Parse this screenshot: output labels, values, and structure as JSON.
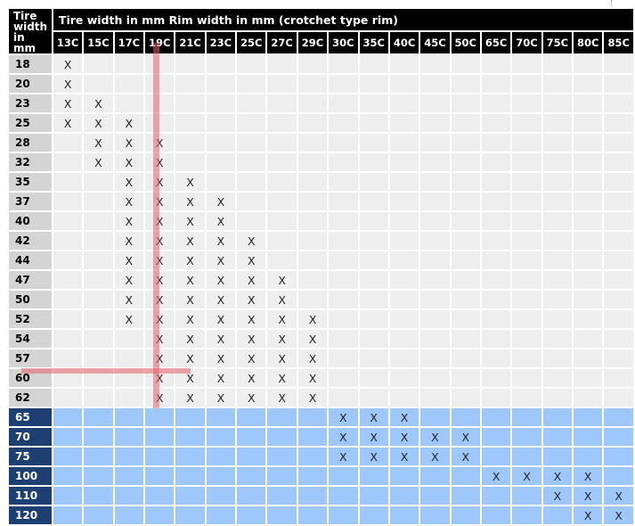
{
  "header": {
    "corner_label": [
      "Tire",
      "width",
      "in",
      "mm"
    ],
    "title": "Tire width in mm Rim width in mm (crotchet type rim)"
  },
  "columns": [
    "13C",
    "15C",
    "17C",
    "19C",
    "21C",
    "23C",
    "25C",
    "27C",
    "29C",
    "30C",
    "35C",
    "40C",
    "45C",
    "50C",
    "65C",
    "70C",
    "75C",
    "80C",
    "85C"
  ],
  "rows": [
    {
      "tire": "18",
      "marks": [
        "13C"
      ]
    },
    {
      "tire": "20",
      "marks": [
        "13C"
      ]
    },
    {
      "tire": "23",
      "marks": [
        "13C",
        "15C"
      ]
    },
    {
      "tire": "25",
      "marks": [
        "13C",
        "15C",
        "17C"
      ]
    },
    {
      "tire": "28",
      "marks": [
        "15C",
        "17C",
        "19C"
      ]
    },
    {
      "tire": "32",
      "marks": [
        "15C",
        "17C",
        "19C"
      ]
    },
    {
      "tire": "35",
      "marks": [
        "17C",
        "19C",
        "21C"
      ]
    },
    {
      "tire": "37",
      "marks": [
        "17C",
        "19C",
        "21C",
        "23C"
      ]
    },
    {
      "tire": "40",
      "marks": [
        "17C",
        "19C",
        "21C",
        "23C"
      ]
    },
    {
      "tire": "42",
      "marks": [
        "17C",
        "19C",
        "21C",
        "23C",
        "25C"
      ]
    },
    {
      "tire": "44",
      "marks": [
        "17C",
        "19C",
        "21C",
        "23C",
        "25C"
      ]
    },
    {
      "tire": "47",
      "marks": [
        "17C",
        "19C",
        "21C",
        "23C",
        "25C",
        "27C"
      ]
    },
    {
      "tire": "50",
      "marks": [
        "17C",
        "19C",
        "21C",
        "23C",
        "25C",
        "27C"
      ]
    },
    {
      "tire": "52",
      "marks": [
        "17C",
        "19C",
        "21C",
        "23C",
        "25C",
        "27C",
        "29C"
      ]
    },
    {
      "tire": "54",
      "marks": [
        "19C",
        "21C",
        "23C",
        "25C",
        "27C",
        "29C"
      ]
    },
    {
      "tire": "57",
      "marks": [
        "19C",
        "21C",
        "23C",
        "25C",
        "27C",
        "29C"
      ]
    },
    {
      "tire": "60",
      "marks": [
        "19C",
        "21C",
        "23C",
        "25C",
        "27C",
        "29C"
      ]
    },
    {
      "tire": "62",
      "marks": [
        "19C",
        "21C",
        "23C",
        "25C",
        "27C",
        "29C"
      ]
    },
    {
      "tire": "65",
      "group": "blue",
      "marks": [
        "30C",
        "35C",
        "40C"
      ]
    },
    {
      "tire": "70",
      "group": "blue",
      "marks": [
        "30C",
        "35C",
        "40C",
        "45C",
        "50C"
      ]
    },
    {
      "tire": "75",
      "group": "blue",
      "marks": [
        "30C",
        "35C",
        "40C",
        "45C",
        "50C"
      ]
    },
    {
      "tire": "100",
      "group": "blue",
      "marks": [
        "65C",
        "70C",
        "75C",
        "80C"
      ]
    },
    {
      "tire": "110",
      "group": "blue",
      "marks": [
        "75C",
        "80C",
        "85C"
      ]
    },
    {
      "tire": "120",
      "group": "blue",
      "marks": [
        "80C",
        "85C"
      ]
    }
  ],
  "mark_symbol": "X",
  "colors": {
    "header_bg": "#000000",
    "row_header_gray": "#d4d4d4",
    "cell_gray": "#eeeeee",
    "row_header_blue": "#1d3f72",
    "cell_blue": "#9ec8fb",
    "highlight_line": "#e26068"
  }
}
